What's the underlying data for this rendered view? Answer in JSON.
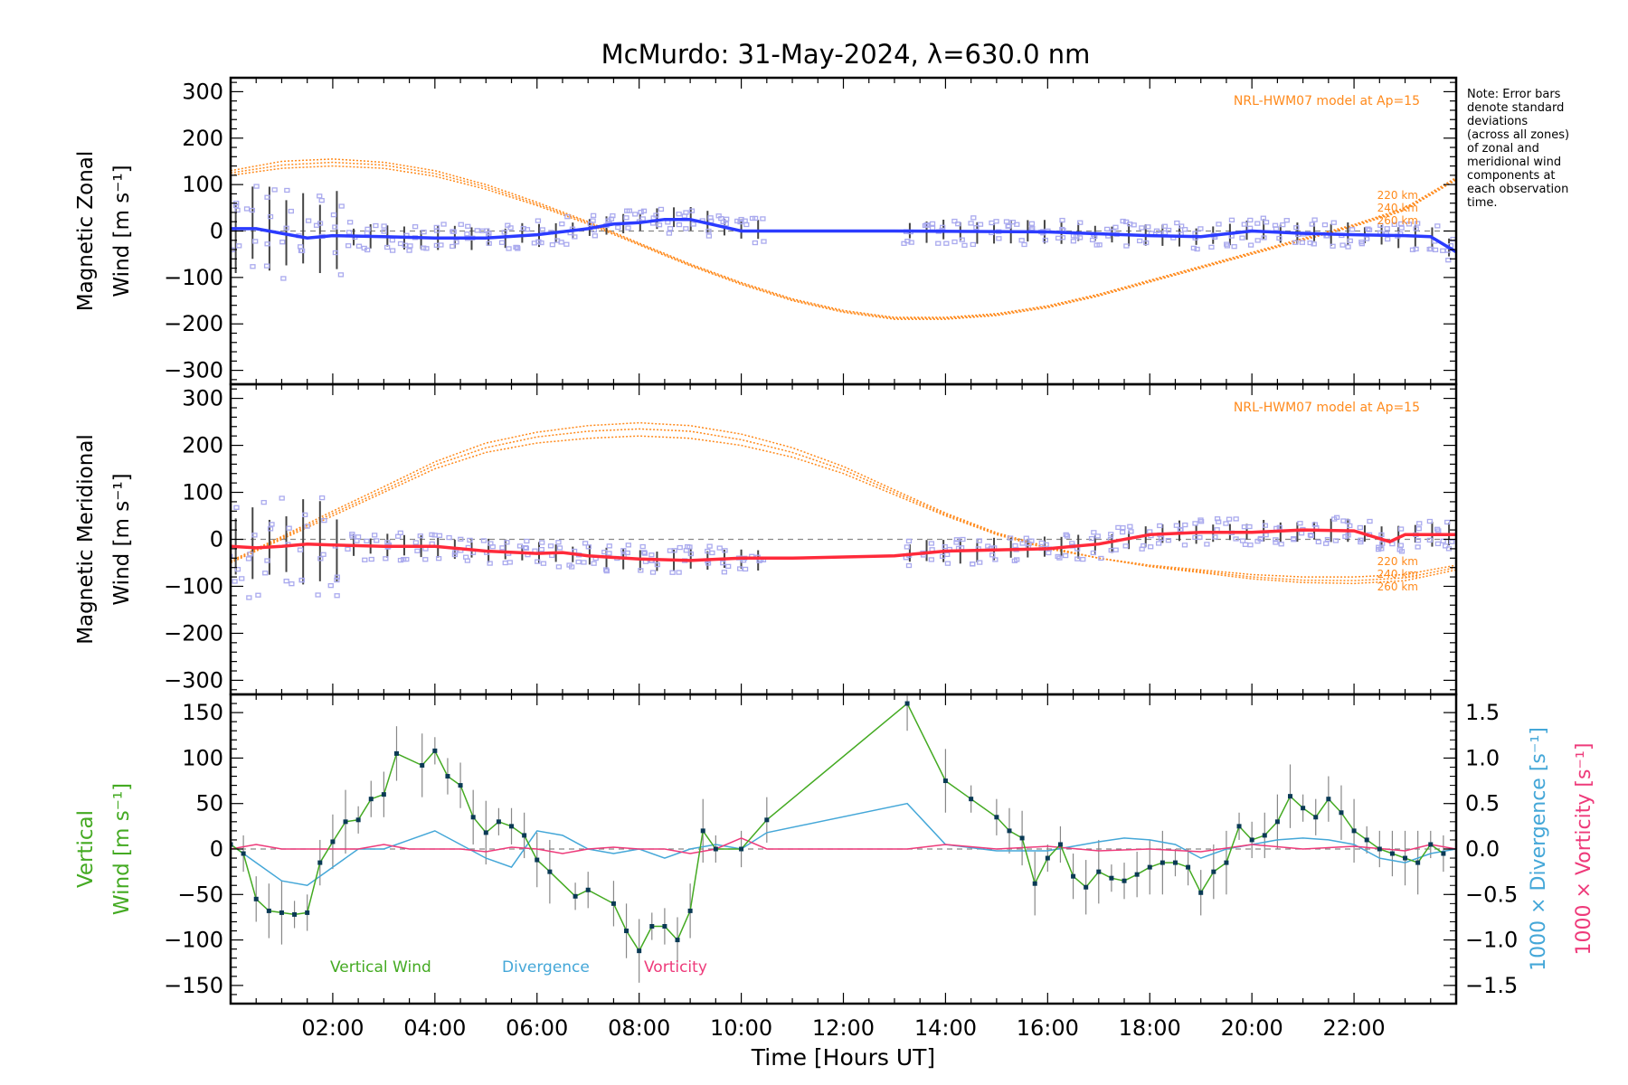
{
  "title": "McMurdo: 31-May-2024, λ=630.0 nm",
  "note": [
    "Note: Error bars",
    "denote standard",
    "deviations",
    "(across all zones)",
    "of zonal and",
    "meridional wind",
    "components at",
    "each observation",
    "time."
  ],
  "chart_data": [
    {
      "type": "line",
      "panel": "zonal",
      "ylabel_lines": [
        "Magnetic Zonal",
        "Wind [m s⁻¹]"
      ],
      "ylim": [
        -330,
        330
      ],
      "yticks": [
        300,
        200,
        100,
        0,
        -100,
        -200,
        -300
      ],
      "xlim": [
        0,
        24
      ],
      "model_label": "NRL-HWM07 model at Ap=15",
      "model_altitudes": [
        "220 km",
        "240 km",
        "260 km"
      ],
      "colors": {
        "series": "#2b3bff",
        "model": "#ff8a1c",
        "scatter": "#aaaaee",
        "errorbar": "#444444"
      },
      "series": [
        {
          "name": "Magnetic Zonal Wind",
          "x": [
            0.0,
            0.5,
            1.0,
            1.5,
            2.0,
            3.0,
            4.0,
            5.0,
            6.0,
            7.0,
            7.5,
            8.0,
            8.5,
            9.0,
            10.0,
            11.0,
            13.0,
            16.0,
            18.0,
            19.0,
            20.0,
            21.0,
            22.0,
            23.0,
            23.5,
            24.0
          ],
          "y": [
            5,
            5,
            -5,
            -15,
            -10,
            -12,
            -15,
            -15,
            -8,
            5,
            15,
            18,
            25,
            25,
            0,
            0,
            0,
            -2,
            -10,
            -12,
            0,
            -5,
            -8,
            -10,
            -12,
            -45
          ]
        }
      ],
      "model": [
        {
          "name": "220 km",
          "x": [
            0,
            1,
            2,
            3,
            4,
            5,
            6,
            7,
            8,
            9,
            10,
            11,
            12,
            13,
            14,
            15,
            16,
            17,
            18,
            19,
            20,
            21,
            22,
            23,
            24
          ],
          "y": [
            120,
            135,
            140,
            135,
            118,
            90,
            55,
            15,
            -30,
            -75,
            -115,
            -150,
            -175,
            -190,
            -190,
            -182,
            -165,
            -140,
            -110,
            -80,
            -50,
            -20,
            10,
            45,
            110
          ]
        },
        {
          "name": "240 km",
          "x": [
            0,
            1,
            2,
            3,
            4,
            5,
            6,
            7,
            8,
            9,
            10,
            11,
            12,
            13,
            14,
            15,
            16,
            17,
            18,
            19,
            20,
            21,
            22,
            23,
            24
          ],
          "y": [
            125,
            142,
            148,
            142,
            124,
            95,
            58,
            18,
            -28,
            -73,
            -113,
            -148,
            -173,
            -188,
            -188,
            -180,
            -163,
            -138,
            -108,
            -78,
            -48,
            -18,
            12,
            47,
            112
          ]
        },
        {
          "name": "260 km",
          "x": [
            0,
            1,
            2,
            3,
            4,
            5,
            6,
            7,
            8,
            9,
            10,
            11,
            12,
            13,
            14,
            15,
            16,
            17,
            18,
            19,
            20,
            21,
            22,
            23,
            24
          ],
          "y": [
            130,
            150,
            155,
            148,
            130,
            100,
            62,
            20,
            -26,
            -71,
            -111,
            -146,
            -171,
            -186,
            -186,
            -178,
            -161,
            -136,
            -106,
            -76,
            -46,
            -16,
            14,
            50,
            115
          ]
        }
      ]
    },
    {
      "type": "line",
      "panel": "meridional",
      "ylabel_lines": [
        "Magnetic Meridional",
        "Wind [m s⁻¹]"
      ],
      "ylim": [
        -330,
        330
      ],
      "yticks": [
        300,
        200,
        100,
        0,
        -100,
        -200,
        -300
      ],
      "xlim": [
        0,
        24
      ],
      "model_label": "NRL-HWM07 model at Ap=15",
      "model_altitudes": [
        "220 km",
        "240 km",
        "260 km"
      ],
      "colors": {
        "series": "#ff2a3a",
        "model": "#ff8a1c",
        "scatter": "#aaaaee",
        "errorbar": "#444444"
      },
      "series": [
        {
          "name": "Magnetic Meridional Wind",
          "x": [
            0.0,
            0.5,
            1.0,
            1.5,
            2.0,
            3.0,
            4.0,
            5.0,
            6.0,
            6.5,
            7.0,
            8.0,
            9.0,
            10.0,
            11.0,
            13.0,
            14.0,
            16.0,
            17.0,
            18.0,
            19.0,
            20.0,
            21.0,
            22.0,
            22.7,
            23.0,
            24.0
          ],
          "y": [
            -15,
            -18,
            -15,
            -10,
            -12,
            -15,
            -15,
            -25,
            -30,
            -28,
            -35,
            -42,
            -45,
            -40,
            -40,
            -35,
            -25,
            -20,
            -10,
            10,
            15,
            15,
            20,
            18,
            -5,
            10,
            10
          ]
        }
      ],
      "model": [
        {
          "name": "220 km",
          "x": [
            0,
            1,
            2,
            3,
            4,
            5,
            6,
            7,
            8,
            9,
            10,
            11,
            12,
            13,
            14,
            15,
            16,
            17,
            18,
            19,
            20,
            21,
            22,
            23,
            24
          ],
          "y": [
            -50,
            0,
            50,
            100,
            150,
            185,
            205,
            215,
            220,
            215,
            200,
            175,
            140,
            95,
            50,
            10,
            -20,
            -40,
            -55,
            -65,
            -75,
            -80,
            -80,
            -75,
            -55
          ]
        },
        {
          "name": "240 km",
          "x": [
            0,
            1,
            2,
            3,
            4,
            5,
            6,
            7,
            8,
            9,
            10,
            11,
            12,
            13,
            14,
            15,
            16,
            17,
            18,
            19,
            20,
            21,
            22,
            23,
            24
          ],
          "y": [
            -48,
            3,
            55,
            105,
            158,
            195,
            218,
            230,
            235,
            230,
            212,
            185,
            148,
            100,
            53,
            12,
            -18,
            -40,
            -57,
            -68,
            -80,
            -87,
            -88,
            -82,
            -60
          ]
        },
        {
          "name": "260 km",
          "x": [
            0,
            1,
            2,
            3,
            4,
            5,
            6,
            7,
            8,
            9,
            10,
            11,
            12,
            13,
            14,
            15,
            16,
            17,
            18,
            19,
            20,
            21,
            22,
            23,
            24
          ],
          "y": [
            -46,
            6,
            60,
            112,
            165,
            205,
            228,
            242,
            248,
            242,
            224,
            195,
            155,
            105,
            56,
            14,
            -16,
            -40,
            -58,
            -71,
            -84,
            -92,
            -94,
            -88,
            -65
          ]
        }
      ]
    },
    {
      "type": "line",
      "panel": "vertical",
      "ylabel_lines": [
        "Vertical",
        "Wind [m s⁻¹]"
      ],
      "ylim": [
        -170,
        170
      ],
      "yticks": [
        150,
        100,
        50,
        0,
        -50,
        -100,
        -150
      ],
      "y2lim": [
        -1.7,
        1.7
      ],
      "y2ticks": [
        "1.5",
        "1.0",
        "0.5",
        "0.0",
        "−0.5",
        "−1.0",
        "−1.5"
      ],
      "y2labels": [
        "1000 × Divergence [s⁻¹]",
        "1000 × Vorticity [s⁻¹]"
      ],
      "xlim": [
        0,
        24
      ],
      "xticks": [
        "02:00",
        "04:00",
        "06:00",
        "08:00",
        "10:00",
        "12:00",
        "14:00",
        "16:00",
        "18:00",
        "20:00",
        "22:00"
      ],
      "xlabel": "Time [Hours UT]",
      "legend": [
        "Vertical Wind",
        "Divergence",
        "Vorticity"
      ],
      "colors": {
        "vertical": "#44aa22",
        "divergence": "#44a7d8",
        "vorticity": "#ee3a7a",
        "errorbar": "#888888",
        "point": "#0a3a55"
      },
      "series": [
        {
          "name": "Vertical Wind",
          "x": [
            0.0,
            0.25,
            0.5,
            0.75,
            1.0,
            1.25,
            1.5,
            1.75,
            2.0,
            2.25,
            2.5,
            2.75,
            3.0,
            3.25,
            3.75,
            4.0,
            4.25,
            4.5,
            4.75,
            5.0,
            5.25,
            5.5,
            5.75,
            6.0,
            6.25,
            6.75,
            7.0,
            7.5,
            7.75,
            8.0,
            8.25,
            8.5,
            8.75,
            9.0,
            9.25,
            9.5,
            10.0,
            10.5,
            13.25,
            14.0,
            14.5,
            15.0,
            15.25,
            15.5,
            15.75,
            16.0,
            16.25,
            16.5,
            16.75,
            17.0,
            17.25,
            17.5,
            17.75,
            18.0,
            18.25,
            18.5,
            18.75,
            19.0,
            19.25,
            19.5,
            19.75,
            20.0,
            20.25,
            20.5,
            20.75,
            21.0,
            21.25,
            21.5,
            21.75,
            22.0,
            22.25,
            22.5,
            22.75,
            23.0,
            23.25,
            23.5,
            23.75
          ],
          "y": [
            5,
            -5,
            -55,
            -68,
            -70,
            -72,
            -70,
            -15,
            8,
            30,
            32,
            55,
            60,
            105,
            92,
            108,
            80,
            70,
            35,
            18,
            30,
            25,
            15,
            -12,
            -25,
            -52,
            -45,
            -60,
            -90,
            -112,
            -85,
            -85,
            -100,
            -68,
            20,
            0,
            0,
            32,
            160,
            75,
            55,
            35,
            20,
            12,
            -38,
            -10,
            5,
            -30,
            -42,
            -25,
            -32,
            -35,
            -28,
            -20,
            -15,
            -15,
            -20,
            -48,
            -25,
            -15,
            25,
            10,
            15,
            30,
            58,
            45,
            35,
            55,
            40,
            20,
            10,
            0,
            -5,
            -10,
            -15,
            5,
            -5
          ]
        },
        {
          "name": "Divergence",
          "x": [
            0.0,
            0.5,
            1.0,
            1.5,
            2.0,
            2.5,
            3.0,
            3.5,
            4.0,
            4.5,
            5.0,
            5.5,
            6.0,
            6.5,
            7.0,
            7.5,
            8.0,
            8.5,
            9.0,
            9.5,
            10.0,
            10.5,
            13.25,
            14.0,
            15.0,
            16.0,
            17.0,
            17.5,
            18.0,
            18.5,
            19.0,
            19.5,
            20.0,
            20.5,
            21.0,
            21.5,
            22.0,
            22.5,
            23.0,
            23.5,
            24.0
          ],
          "y": [
            0.05,
            -0.15,
            -0.35,
            -0.4,
            -0.2,
            0.0,
            0.0,
            0.1,
            0.2,
            0.05,
            -0.1,
            -0.2,
            0.2,
            0.15,
            0.0,
            -0.05,
            0.0,
            -0.1,
            0.0,
            0.05,
            0.0,
            0.18,
            0.5,
            0.05,
            -0.02,
            -0.02,
            0.08,
            0.12,
            0.1,
            0.05,
            -0.1,
            0.0,
            0.05,
            0.1,
            0.12,
            0.1,
            0.05,
            -0.1,
            -0.15,
            -0.05,
            0.0
          ]
        },
        {
          "name": "Vorticity",
          "x": [
            0.0,
            0.5,
            1.0,
            1.5,
            2.0,
            2.5,
            3.0,
            3.5,
            4.0,
            4.5,
            5.0,
            5.5,
            6.0,
            6.5,
            7.0,
            7.5,
            8.0,
            8.5,
            9.0,
            9.5,
            10.0,
            10.5,
            13.25,
            14.0,
            15.0,
            16.0,
            17.0,
            18.0,
            19.0,
            20.0,
            21.0,
            22.0,
            23.0,
            23.5,
            24.0
          ],
          "y": [
            0.0,
            0.05,
            0.0,
            0.0,
            0.0,
            0.0,
            0.05,
            0.0,
            0.0,
            0.0,
            -0.03,
            0.02,
            0.0,
            -0.05,
            0.0,
            0.02,
            0.0,
            0.0,
            -0.05,
            0.0,
            0.12,
            0.0,
            0.0,
            0.05,
            0.0,
            0.03,
            -0.02,
            0.0,
            -0.03,
            0.05,
            0.0,
            0.03,
            -0.02,
            0.05,
            0.0
          ]
        }
      ]
    }
  ]
}
